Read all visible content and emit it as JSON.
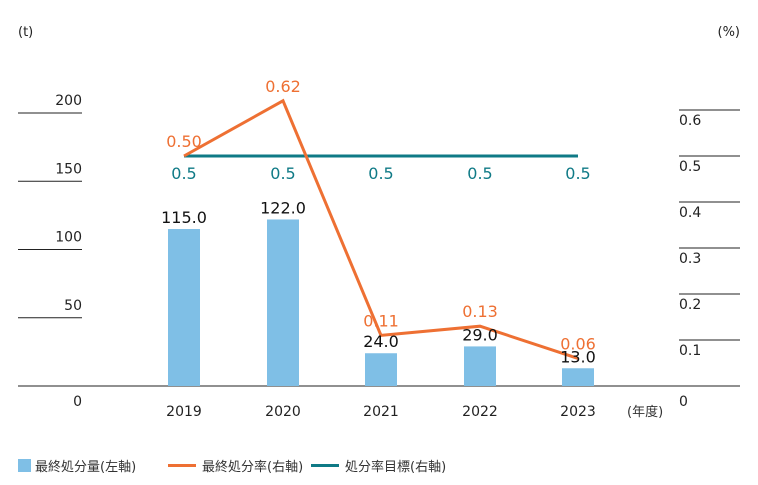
{
  "chart_data": {
    "type": "bar+line",
    "categories": [
      "2019",
      "2020",
      "2021",
      "2022",
      "2023"
    ],
    "x_unit": "(年度)",
    "left_axis": {
      "unit": "(t)",
      "ticks": [
        "0",
        "50",
        "100",
        "150",
        "200"
      ],
      "range": [
        0,
        200
      ]
    },
    "right_axis": {
      "unit": "(%)",
      "ticks": [
        "0",
        "0.1",
        "0.2",
        "0.3",
        "0.4",
        "0.5",
        "0.6"
      ],
      "range": [
        0,
        0.6
      ]
    },
    "bar_series": {
      "name": "最終処分量(左軸)",
      "color": "#7fbfe6",
      "values": [
        115.0,
        122.0,
        24.0,
        29.0,
        13.0
      ],
      "labels": [
        "115.0",
        "122.0",
        "24.0",
        "29.0",
        "13.0"
      ]
    },
    "line_series": [
      {
        "name": "最終処分率(右軸)",
        "color": "#ee7033",
        "values": [
          0.5,
          0.62,
          0.11,
          0.13,
          0.06
        ],
        "labels": [
          "0.50",
          "0.62",
          "0.11",
          "0.13",
          "0.06"
        ]
      },
      {
        "name": "処分率目標(右軸)",
        "color": "#0f7a86",
        "values": [
          0.5,
          0.5,
          0.5,
          0.5,
          0.5
        ],
        "labels": [
          "0.5",
          "0.5",
          "0.5",
          "0.5",
          "0.5"
        ]
      }
    ]
  }
}
